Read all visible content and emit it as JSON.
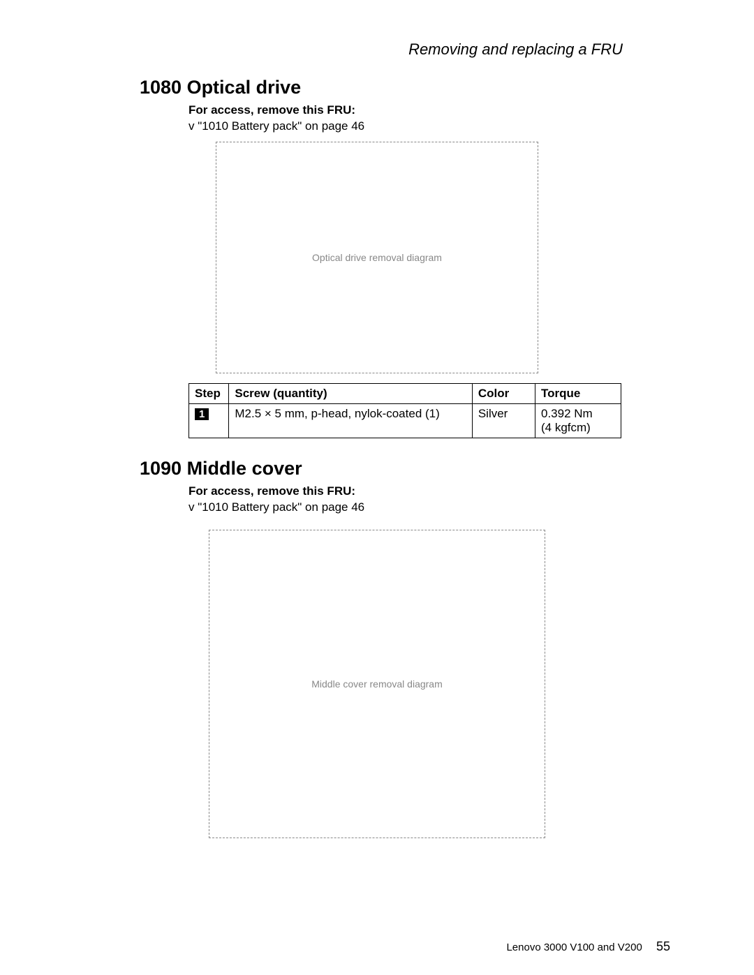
{
  "running_head": "Removing and replacing a FRU",
  "section1": {
    "title": "1080 Optical drive",
    "access_label": "For access, remove this FRU:",
    "access_item": "\"1010 Battery pack\" on page 46",
    "access_page": "46",
    "figure_alt": "Optical drive removal diagram",
    "table": {
      "headers": {
        "step": "Step",
        "screw": "Screw (quantity)",
        "color": "Color",
        "torque": "Torque"
      },
      "row": {
        "step": "1",
        "screw": "M2.5 × 5 mm, p-head, nylok-coated (1)",
        "color": "Silver",
        "torque_line1": "0.392 Nm",
        "torque_line2": "(4 kgfcm)"
      },
      "col_widths": {
        "step": 56,
        "screw": 340,
        "color": 88,
        "torque": 120
      }
    }
  },
  "section2": {
    "title": "1090 Middle cover",
    "access_label": "For access, remove this FRU:",
    "access_item": "\"1010 Battery pack\" on page 46",
    "access_page": "46",
    "figure_alt": "Middle cover removal diagram"
  },
  "footer": {
    "doc": "Lenovo 3000 V100 and V200",
    "page": "55"
  },
  "colors": {
    "text": "#000000",
    "bg": "#ffffff",
    "placeholder_border": "#888888"
  },
  "fontsizes": {
    "running_head": 22,
    "section_title": 27,
    "body": 17,
    "footer": 15
  }
}
